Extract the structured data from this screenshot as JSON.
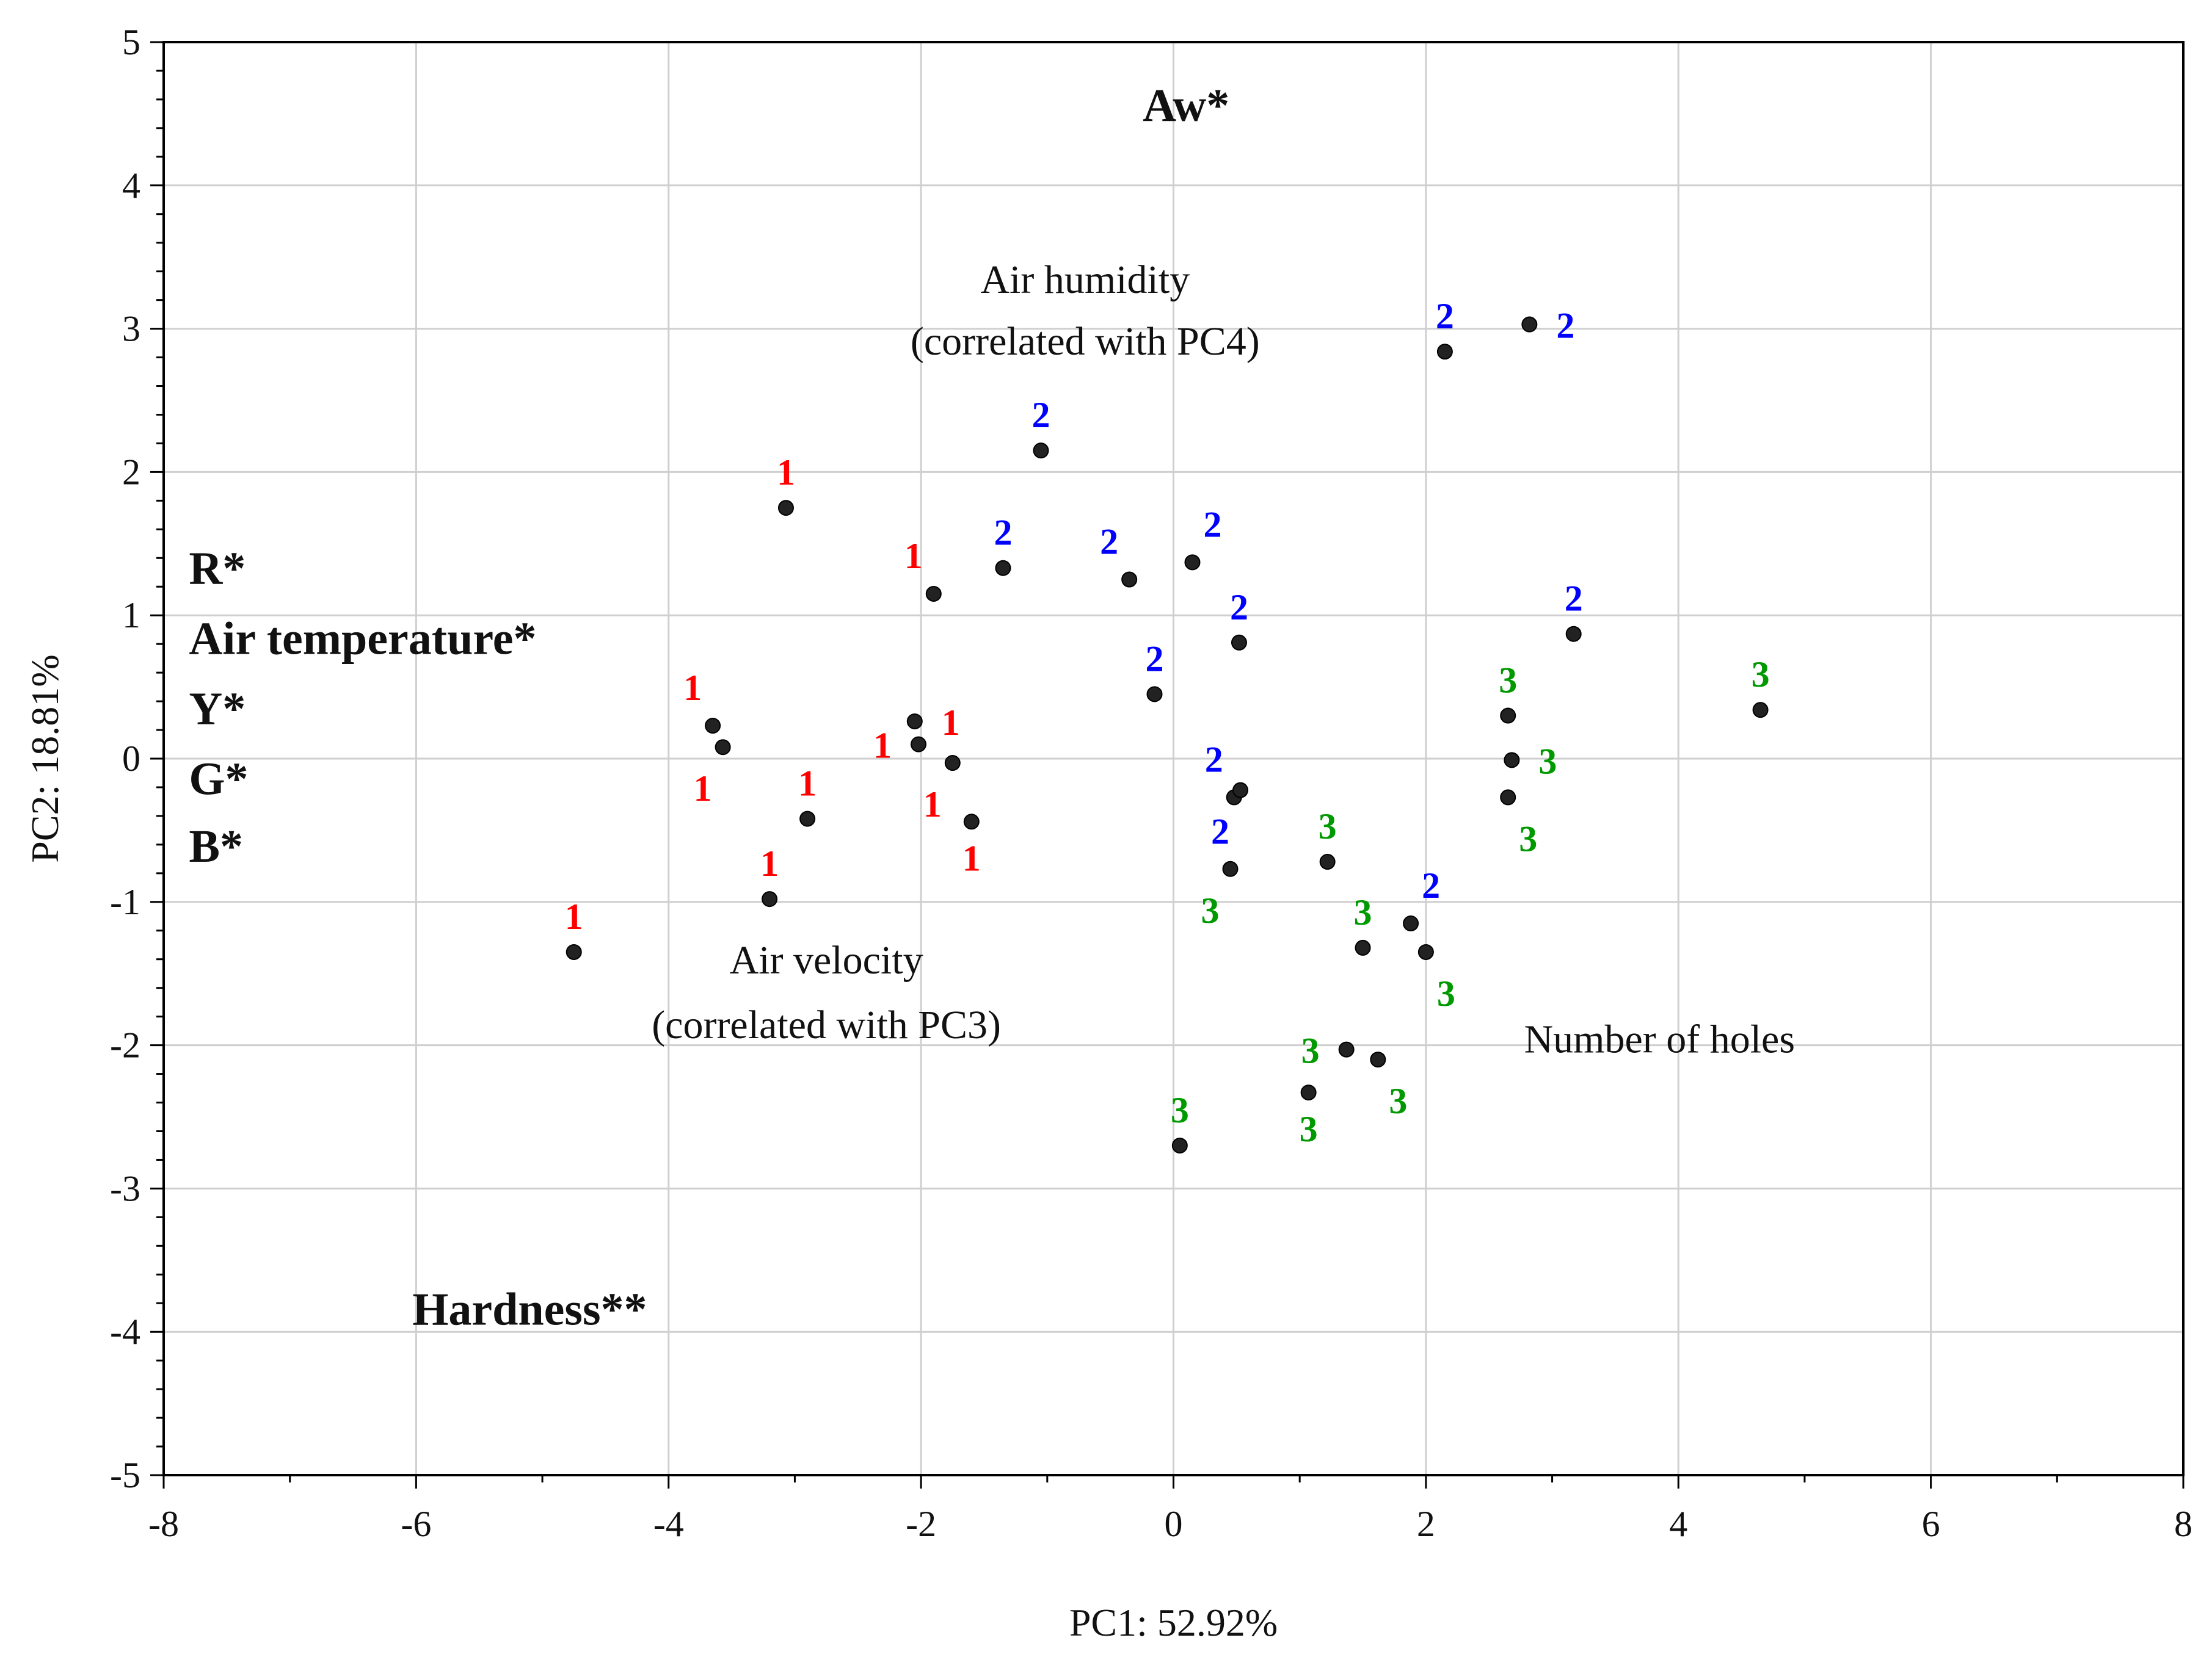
{
  "chart_data": {
    "type": "scatter",
    "title": "",
    "xlabel": "PC1: 52.92%",
    "ylabel": "PC2: 18.81%",
    "xlim": [
      -8,
      8
    ],
    "ylim": [
      -5,
      5
    ],
    "x_ticks": [
      -8,
      -6,
      -4,
      -2,
      0,
      2,
      4,
      6,
      8
    ],
    "y_ticks": [
      -5,
      -4,
      -3,
      -2,
      -1,
      0,
      1,
      2,
      3,
      4,
      5
    ],
    "grid": true,
    "group_colors": {
      "1": "#ff0000",
      "2": "#0000ff",
      "3": "#009900"
    },
    "point_color": "#222222",
    "points": [
      {
        "x": -4.75,
        "y": -1.35,
        "group": "1",
        "label_pos": "above"
      },
      {
        "x": -3.65,
        "y": 0.23,
        "group": "1",
        "label_pos": "above-left"
      },
      {
        "x": -3.57,
        "y": 0.08,
        "group": "1",
        "label_pos": "below-left"
      },
      {
        "x": -3.07,
        "y": 1.75,
        "group": "1",
        "label_pos": "above"
      },
      {
        "x": -3.2,
        "y": -0.98,
        "group": "1",
        "label_pos": "above"
      },
      {
        "x": -2.9,
        "y": -0.42,
        "group": "1",
        "label_pos": "above"
      },
      {
        "x": -2.05,
        "y": 0.26,
        "group": "1",
        "label_pos": "right"
      },
      {
        "x": -2.02,
        "y": 0.1,
        "group": "1",
        "label_pos": "left"
      },
      {
        "x": -1.9,
        "y": 1.15,
        "group": "1",
        "label_pos": "above-left"
      },
      {
        "x": -1.75,
        "y": -0.03,
        "group": "1",
        "label_pos": "below-left"
      },
      {
        "x": -1.6,
        "y": -0.44,
        "group": "1",
        "label_pos": "below"
      },
      {
        "x": -1.35,
        "y": 1.33,
        "group": "2",
        "label_pos": "above"
      },
      {
        "x": -1.05,
        "y": 2.15,
        "group": "2",
        "label_pos": "above"
      },
      {
        "x": -0.35,
        "y": 1.25,
        "group": "2",
        "label_pos": "above-left"
      },
      {
        "x": -0.15,
        "y": 0.45,
        "group": "2",
        "label_pos": "above"
      },
      {
        "x": 0.15,
        "y": 1.37,
        "group": "2",
        "label_pos": "above-right"
      },
      {
        "x": 0.52,
        "y": 0.81,
        "group": "2",
        "label_pos": "above"
      },
      {
        "x": 0.48,
        "y": -0.27,
        "group": "2",
        "label_pos": "above-left"
      },
      {
        "x": 0.53,
        "y": -0.22,
        "group": "2",
        "label_pos": "below-left"
      },
      {
        "x": 2.15,
        "y": 2.84,
        "group": "2",
        "label_pos": "above"
      },
      {
        "x": 2.82,
        "y": 3.03,
        "group": "2",
        "label_pos": "right"
      },
      {
        "x": 1.88,
        "y": -1.15,
        "group": "2",
        "label_pos": "above-right"
      },
      {
        "x": 3.17,
        "y": 0.87,
        "group": "2",
        "label_pos": "above"
      },
      {
        "x": 0.45,
        "y": -0.77,
        "group": "3",
        "label_pos": "below-left"
      },
      {
        "x": 1.22,
        "y": -0.72,
        "group": "3",
        "label_pos": "above"
      },
      {
        "x": 1.5,
        "y": -1.32,
        "group": "3",
        "label_pos": "above"
      },
      {
        "x": 2.0,
        "y": -1.35,
        "group": "3",
        "label_pos": "below-right"
      },
      {
        "x": 1.37,
        "y": -2.03,
        "group": "3",
        "label_pos": "left"
      },
      {
        "x": 1.62,
        "y": -2.1,
        "group": "3",
        "label_pos": "below-right"
      },
      {
        "x": 1.07,
        "y": -2.33,
        "group": "3",
        "label_pos": "below"
      },
      {
        "x": 0.05,
        "y": -2.7,
        "group": "3",
        "label_pos": "above"
      },
      {
        "x": 2.65,
        "y": 0.3,
        "group": "3",
        "label_pos": "above"
      },
      {
        "x": 2.68,
        "y": -0.01,
        "group": "3",
        "label_pos": "right"
      },
      {
        "x": 2.65,
        "y": -0.27,
        "group": "3",
        "label_pos": "below-right"
      },
      {
        "x": 4.65,
        "y": 0.34,
        "group": "3",
        "label_pos": "above"
      }
    ],
    "annotations": [
      {
        "text": "Aw*",
        "x": 0.1,
        "y": 4.45,
        "bold": true,
        "align": "middle"
      },
      {
        "text": "Air humidity",
        "x": -0.7,
        "y": 3.25,
        "bold": false,
        "align": "middle"
      },
      {
        "text": "(correlated with PC4)",
        "x": -0.7,
        "y": 2.82,
        "bold": false,
        "align": "middle"
      },
      {
        "text": "R*",
        "x": -7.8,
        "y": 1.22,
        "bold": true,
        "align": "start"
      },
      {
        "text": "Air temperature*",
        "x": -7.8,
        "y": 0.73,
        "bold": true,
        "align": "start"
      },
      {
        "text": "Y*",
        "x": -7.8,
        "y": 0.24,
        "bold": true,
        "align": "start"
      },
      {
        "text": "G*",
        "x": -7.8,
        "y": -0.25,
        "bold": true,
        "align": "start"
      },
      {
        "text": "B*",
        "x": -7.8,
        "y": -0.72,
        "bold": true,
        "align": "start"
      },
      {
        "text": "Air velocity",
        "x": -2.75,
        "y": -1.5,
        "bold": false,
        "align": "middle"
      },
      {
        "text": "(correlated with PC3)",
        "x": -2.75,
        "y": -1.95,
        "bold": false,
        "align": "middle"
      },
      {
        "text": "Number of holes",
        "x": 3.85,
        "y": -2.05,
        "bold": false,
        "align": "middle"
      },
      {
        "text": "Hardness**",
        "x": -5.1,
        "y": -3.95,
        "bold": true,
        "align": "middle"
      }
    ]
  }
}
